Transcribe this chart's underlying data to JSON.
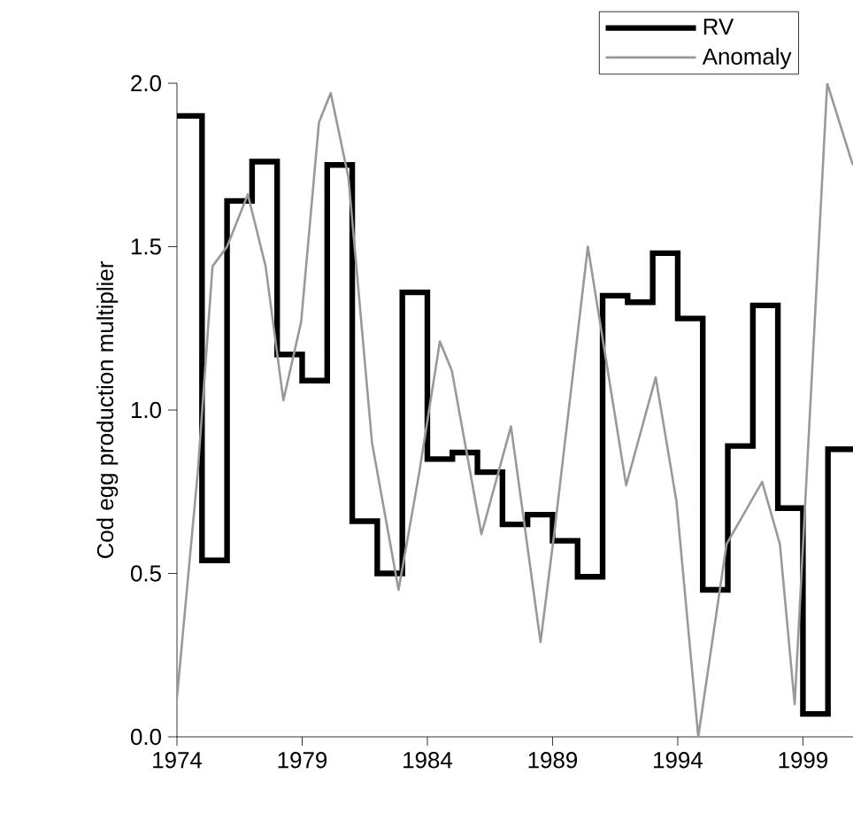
{
  "chart_data": {
    "type": "line",
    "ylabel": "Cod egg production multiplier",
    "xlim": [
      1974,
      2001
    ],
    "ylim": [
      0,
      2
    ],
    "xticks": [
      1974,
      1979,
      1984,
      1989,
      1994,
      1999
    ],
    "yticks": [
      {
        "value": 0,
        "label": "0.0"
      },
      {
        "value": 0.5,
        "label": "0.5"
      },
      {
        "value": 1,
        "label": "1.0"
      },
      {
        "value": 1.5,
        "label": "1.5"
      },
      {
        "value": 2,
        "label": "2.0"
      }
    ],
    "legend": "top right",
    "grid": false,
    "marker": "none",
    "series": [
      {
        "name": "RV",
        "type": "step",
        "color": "#000000",
        "x": [
          1974,
          1975,
          1976,
          1977,
          1978,
          1979,
          1980,
          1981,
          1982,
          1983,
          1984,
          1985,
          1986,
          1987,
          1988,
          1989,
          1990,
          1991,
          1992,
          1993,
          1994,
          1995,
          1996,
          1997,
          1998,
          1999,
          2000,
          2001
        ],
        "values": [
          1.9,
          0.54,
          1.64,
          1.76,
          1.17,
          1.09,
          1.75,
          0.66,
          0.5,
          1.36,
          0.85,
          0.87,
          0.81,
          0.65,
          0.68,
          0.6,
          0.49,
          1.35,
          1.33,
          1.48,
          1.28,
          0.45,
          0.89,
          1.32,
          0.7,
          0.07,
          0.88,
          0.88
        ]
      },
      {
        "name": "Anomaly",
        "color": "#999999",
        "x": [
          1974.0,
          1974.83,
          1975.42,
          1976.0,
          1976.83,
          1977.54,
          1978.25,
          1978.96,
          1979.67,
          1980.14,
          1980.85,
          1981.79,
          1982.85,
          1983.68,
          1984.5,
          1984.98,
          1986.16,
          1987.34,
          1988.52,
          1989.08,
          1990.41,
          1991.94,
          1993.12,
          1993.95,
          1994.82,
          1995.95,
          1997.37,
          1998.08,
          1998.67,
          1999.97,
          2000.91,
          2001
        ],
        "values": [
          0.12,
          0.81,
          1.44,
          1.5,
          1.66,
          1.44,
          1.03,
          1.27,
          1.88,
          1.97,
          1.71,
          0.9,
          0.45,
          0.81,
          1.21,
          1.12,
          0.62,
          0.95,
          0.29,
          0.63,
          1.5,
          0.77,
          1.1,
          0.72,
          0.0,
          0.59,
          0.78,
          0.59,
          0.1,
          2.0,
          1.77,
          1.75
        ]
      }
    ]
  }
}
